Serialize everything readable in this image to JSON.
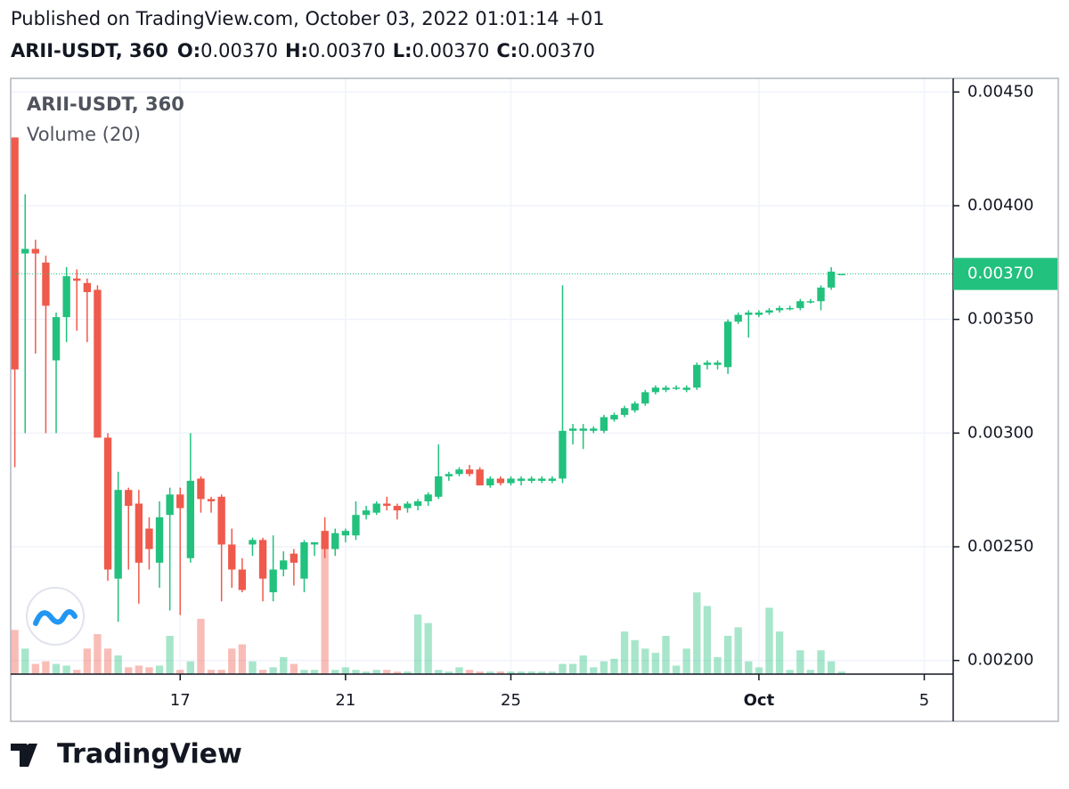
{
  "header": {
    "published": "Published on TradingView.com, October 03, 2022 01:01:14 +01",
    "symbol": "ARII-USDT, 360",
    "ohlc": [
      {
        "label": "O:",
        "value": "0.00370"
      },
      {
        "label": "H:",
        "value": "0.00370"
      },
      {
        "label": "L:",
        "value": "0.00370"
      },
      {
        "label": "C:",
        "value": "0.00370"
      }
    ]
  },
  "footer": "TradingView",
  "chart_data": {
    "type": "candlestick",
    "title": "ARII-USDT, 360",
    "volume_label": "Volume (20)",
    "up_color": "#22c17e",
    "down_color": "#ef5a4c",
    "ylim": [
      0.00194,
      0.00456
    ],
    "yticks": [
      {
        "value": 0.002,
        "label": "0.00200"
      },
      {
        "value": 0.0025,
        "label": "0.00250"
      },
      {
        "value": 0.003,
        "label": "0.00300"
      },
      {
        "value": 0.0035,
        "label": "0.00350"
      },
      {
        "value": 0.004,
        "label": "0.00400"
      },
      {
        "value": 0.0045,
        "label": "0.00450"
      }
    ],
    "xlim": [
      -0.4,
      90.8
    ],
    "xticks": [
      {
        "value": 16,
        "label": "17"
      },
      {
        "value": 32,
        "label": "21"
      },
      {
        "value": 48,
        "label": "25"
      },
      {
        "value": 72,
        "label": "Oct"
      },
      {
        "value": 88,
        "label": "5"
      }
    ],
    "volume_ylim": [
      0,
      700
    ],
    "last_price": {
      "value": 0.0037,
      "label": "0.00370"
    },
    "grid": true,
    "candles": {
      "open": [
        0.0043,
        0.00379,
        0.00381,
        0.00375,
        0.00332,
        0.00351,
        0.00368,
        0.00366,
        0.00363,
        0.00298,
        0.00236,
        0.00275,
        0.00269,
        0.00258,
        0.00243,
        0.00264,
        0.00273,
        0.00245,
        0.0028,
        0.00271,
        0.00272,
        0.00251,
        0.0024,
        0.00251,
        0.00253,
        0.0023,
        0.0024,
        0.00247,
        0.00236,
        0.00251,
        0.00257,
        0.00249,
        0.00255,
        0.00255,
        0.00264,
        0.00265,
        0.00269,
        0.00268,
        0.00267,
        0.00268,
        0.0027,
        0.00272,
        0.00281,
        0.00282,
        0.00284,
        0.00284,
        0.00277,
        0.0028,
        0.00278,
        0.00279,
        0.00279,
        0.00279,
        0.00279,
        0.0028,
        0.00301,
        0.00301,
        0.00301,
        0.00301,
        0.00306,
        0.00308,
        0.0031,
        0.00313,
        0.00318,
        0.00319,
        0.0032,
        0.00319,
        0.0032,
        0.0033,
        0.0033,
        0.00329,
        0.00349,
        0.00352,
        0.00352,
        0.00353,
        0.00354,
        0.00355,
        0.00355,
        0.00358,
        0.00358,
        0.00364,
        0.0037
      ],
      "high": [
        0.0043,
        0.00405,
        0.00385,
        0.00378,
        0.00353,
        0.00373,
        0.00372,
        0.00368,
        0.00365,
        0.003,
        0.00283,
        0.00276,
        0.00275,
        0.00263,
        0.0027,
        0.00276,
        0.00276,
        0.003,
        0.00281,
        0.00272,
        0.00273,
        0.00258,
        0.00245,
        0.00254,
        0.00254,
        0.00255,
        0.00248,
        0.00249,
        0.00253,
        0.00252,
        0.00263,
        0.00258,
        0.00258,
        0.0027,
        0.00268,
        0.0027,
        0.00272,
        0.00269,
        0.0027,
        0.00271,
        0.00274,
        0.00295,
        0.00283,
        0.00285,
        0.00286,
        0.00285,
        0.00281,
        0.00281,
        0.00281,
        0.00281,
        0.00281,
        0.00281,
        0.00281,
        0.00365,
        0.00304,
        0.00304,
        0.00303,
        0.00308,
        0.00309,
        0.00312,
        0.00314,
        0.00319,
        0.00321,
        0.00321,
        0.00321,
        0.00321,
        0.00331,
        0.00332,
        0.00332,
        0.0035,
        0.00353,
        0.00354,
        0.00354,
        0.00355,
        0.00356,
        0.00356,
        0.00359,
        0.00359,
        0.00365,
        0.00373,
        0.0037
      ],
      "low": [
        0.00285,
        0.003,
        0.00335,
        0.003,
        0.003,
        0.0034,
        0.00345,
        0.0034,
        0.00298,
        0.00235,
        0.00217,
        0.0024,
        0.00225,
        0.0024,
        0.00232,
        0.00222,
        0.0022,
        0.00243,
        0.00265,
        0.00265,
        0.00226,
        0.00232,
        0.0023,
        0.00246,
        0.00226,
        0.00226,
        0.00237,
        0.00233,
        0.0023,
        0.00246,
        0.00245,
        0.00246,
        0.00252,
        0.00253,
        0.00262,
        0.00264,
        0.00266,
        0.00262,
        0.00265,
        0.00266,
        0.00268,
        0.00271,
        0.00279,
        0.00281,
        0.00281,
        0.00277,
        0.00276,
        0.00277,
        0.00277,
        0.00277,
        0.00278,
        0.00278,
        0.00278,
        0.00278,
        0.00295,
        0.00293,
        0.003,
        0.003,
        0.00305,
        0.00307,
        0.00309,
        0.00312,
        0.00317,
        0.00318,
        0.00319,
        0.00318,
        0.00319,
        0.00328,
        0.00328,
        0.00326,
        0.00348,
        0.00342,
        0.00351,
        0.00352,
        0.00353,
        0.00354,
        0.00354,
        0.00357,
        0.00354,
        0.00363,
        0.0037
      ],
      "close": [
        0.00328,
        0.00381,
        0.00379,
        0.00356,
        0.00351,
        0.00369,
        0.00367,
        0.00362,
        0.00298,
        0.0024,
        0.00275,
        0.00268,
        0.00243,
        0.00249,
        0.00263,
        0.00273,
        0.00267,
        0.00279,
        0.00271,
        0.0027,
        0.00251,
        0.0024,
        0.00231,
        0.00253,
        0.00236,
        0.0024,
        0.00244,
        0.00243,
        0.00252,
        0.00252,
        0.00249,
        0.00256,
        0.00257,
        0.00264,
        0.00266,
        0.00269,
        0.00268,
        0.00266,
        0.00269,
        0.0027,
        0.00273,
        0.00281,
        0.00282,
        0.00284,
        0.00282,
        0.00277,
        0.0028,
        0.00278,
        0.0028,
        0.0028,
        0.0028,
        0.0028,
        0.0028,
        0.00301,
        0.00302,
        0.00302,
        0.00302,
        0.00307,
        0.00308,
        0.00311,
        0.00313,
        0.00318,
        0.0032,
        0.0032,
        0.0032,
        0.0032,
        0.0033,
        0.00331,
        0.00331,
        0.00349,
        0.00352,
        0.00353,
        0.00353,
        0.00354,
        0.00355,
        0.00355,
        0.00358,
        0.00358,
        0.00364,
        0.00371,
        0.0037
      ],
      "volume": [
        52,
        30,
        12,
        15,
        12,
        10,
        5,
        30,
        47,
        30,
        22,
        8,
        10,
        8,
        10,
        45,
        5,
        15,
        65,
        5,
        5,
        30,
        35,
        15,
        5,
        8,
        20,
        12,
        5,
        5,
        167,
        5,
        8,
        5,
        3,
        5,
        5,
        3,
        3,
        70,
        60,
        5,
        3,
        8,
        5,
        3,
        3,
        3,
        3,
        3,
        3,
        3,
        3,
        12,
        12,
        22,
        8,
        15,
        18,
        50,
        40,
        30,
        25,
        45,
        10,
        30,
        96,
        80,
        20,
        45,
        55,
        15,
        8,
        78,
        50,
        5,
        28,
        5,
        28,
        15,
        3
      ]
    }
  }
}
